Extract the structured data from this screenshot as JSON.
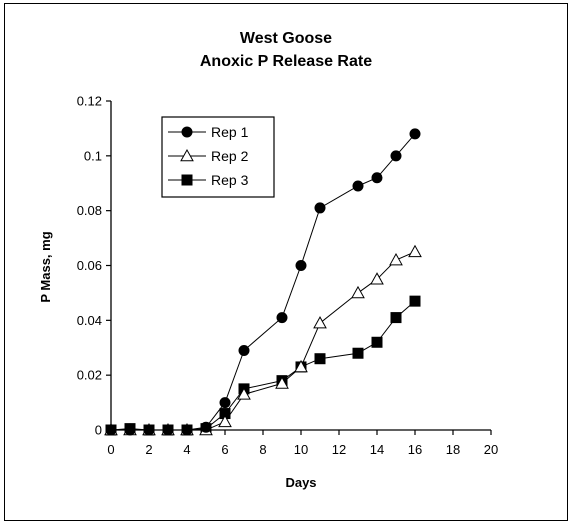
{
  "chart_data": {
    "type": "line",
    "title_lines": [
      "West Goose",
      "Anoxic P Release Rate"
    ],
    "xlabel": "Days",
    "ylabel": "P Mass, mg",
    "xlim": [
      0,
      20
    ],
    "ylim": [
      0,
      0.12
    ],
    "x_ticks": [
      "0",
      "2",
      "4",
      "6",
      "8",
      "10",
      "12",
      "14",
      "16",
      "18",
      "20"
    ],
    "y_ticks": [
      "0",
      "0.02",
      "0.04",
      "0.06",
      "0.08",
      "0.1",
      "0.12"
    ],
    "grid": false,
    "legend_position": "top-left",
    "series": [
      {
        "name": "Rep 1",
        "marker": "circle-filled",
        "x": [
          0,
          1,
          2,
          3,
          4,
          5,
          6,
          7,
          9,
          10,
          11,
          13,
          14,
          15,
          16
        ],
        "y": [
          0,
          0,
          0,
          0,
          0,
          0.001,
          0.01,
          0.029,
          0.041,
          0.06,
          0.081,
          0.089,
          0.092,
          0.1,
          0.108
        ]
      },
      {
        "name": "Rep 2",
        "marker": "triangle-open",
        "x": [
          0,
          1,
          2,
          3,
          4,
          5,
          6,
          7,
          9,
          10,
          11,
          13,
          14,
          15,
          16
        ],
        "y": [
          0,
          0,
          0,
          0,
          0,
          0,
          0.003,
          0.013,
          0.017,
          0.023,
          0.039,
          0.05,
          0.055,
          0.062,
          0.065
        ]
      },
      {
        "name": "Rep 3",
        "marker": "square-filled",
        "x": [
          0,
          1,
          2,
          3,
          4,
          5,
          6,
          7,
          9,
          10,
          11,
          13,
          14,
          15,
          16
        ],
        "y": [
          0,
          0.0005,
          0,
          0,
          0,
          0.0005,
          0.006,
          0.015,
          0.018,
          0.023,
          0.026,
          0.028,
          0.032,
          0.041,
          0.047
        ]
      }
    ]
  }
}
